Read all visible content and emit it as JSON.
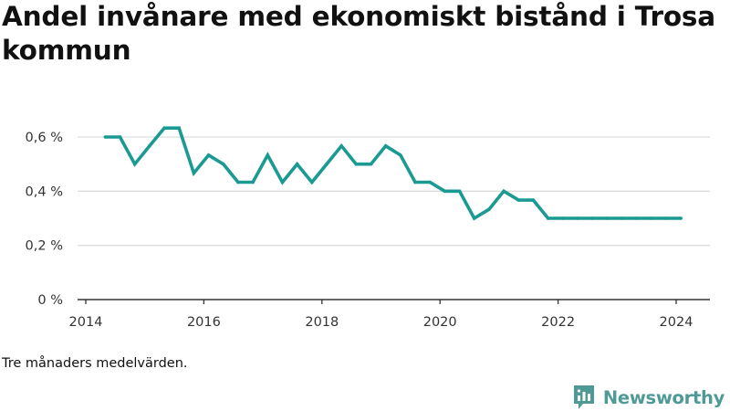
{
  "title": "Andel invånare med ekonomiskt bistånd i Trosa kommun",
  "footnote": "Tre månaders medelvärden.",
  "brand": {
    "name": "Newsworthy",
    "icon": "newsworthy-logo-icon"
  },
  "colors": {
    "line": "#1a9a93",
    "grid": "#dddddd",
    "axis": "#333333",
    "brand": "#4f9a96"
  },
  "chart_data": {
    "type": "line",
    "title": "Andel invånare med ekonomiskt bistånd i Trosa kommun",
    "xlabel": "",
    "ylabel": "",
    "xlim": [
      2014,
      2024.6
    ],
    "ylim": [
      0,
      0.6
    ],
    "x_ticks": [
      2014,
      2016,
      2018,
      2020,
      2022,
      2024
    ],
    "x_tick_labels": [
      "2014",
      "2016",
      "2018",
      "2020",
      "2022",
      "2024"
    ],
    "y_ticks": [
      0,
      0.2,
      0.4,
      0.6
    ],
    "y_tick_labels": [
      "0 %",
      "0,2 %",
      "0,4 %",
      "0,6 %"
    ],
    "grid": true,
    "legend": "none",
    "series": [
      {
        "x": [
          2014.33,
          2014.58,
          2014.83,
          2015.08,
          2015.33,
          2015.58,
          2015.83,
          2016.08,
          2016.33,
          2016.58,
          2016.83,
          2017.08,
          2017.33,
          2017.58,
          2017.83,
          2018.08,
          2018.33,
          2018.58,
          2018.83,
          2019.08,
          2019.33,
          2019.58,
          2019.83,
          2020.08,
          2020.33,
          2020.58,
          2020.83,
          2021.08,
          2021.33,
          2021.58,
          2021.83,
          2022.08,
          2022.33,
          2022.58,
          2022.83,
          2023.08,
          2023.33,
          2023.58,
          2023.83,
          2024.08
        ],
        "values": [
          0.6,
          0.6,
          0.5,
          0.567,
          0.633,
          0.633,
          0.467,
          0.533,
          0.5,
          0.433,
          0.433,
          0.533,
          0.433,
          0.5,
          0.433,
          0.5,
          0.567,
          0.5,
          0.5,
          0.567,
          0.533,
          0.433,
          0.433,
          0.4,
          0.4,
          0.3,
          0.333,
          0.4,
          0.367,
          0.367,
          0.3,
          0.3,
          0.3,
          0.3,
          0.3,
          0.3,
          0.3,
          0.3,
          0.3,
          0.3
        ]
      }
    ]
  }
}
